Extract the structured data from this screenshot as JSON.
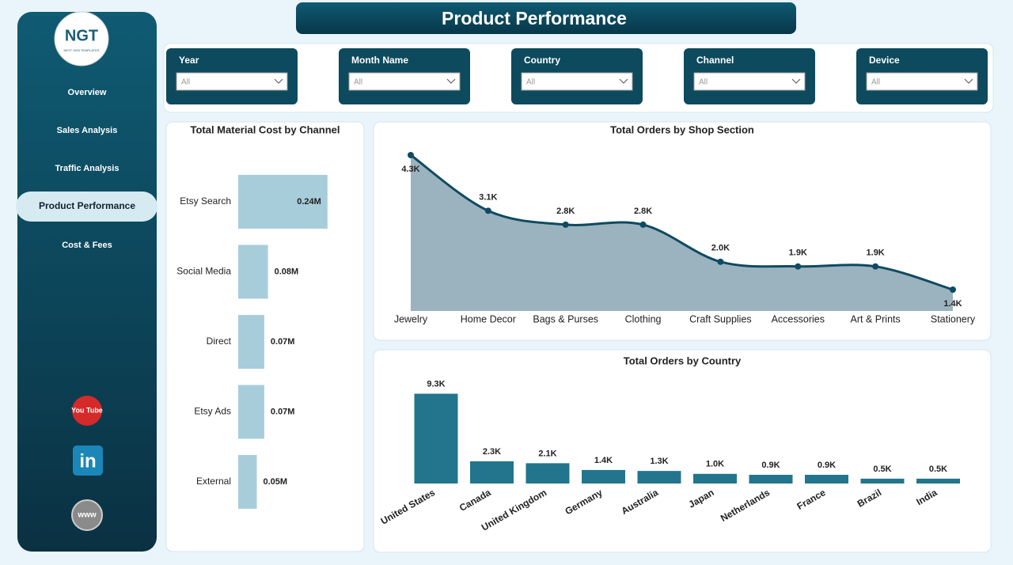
{
  "header": {
    "title": "Product Performance"
  },
  "logo": {
    "text": "NGT",
    "subtext": "NEXT GEN TEMPLATES"
  },
  "nav": [
    "Overview",
    "Sales Analysis",
    "Traffic Analysis",
    "Product Performance",
    "Cost & Fees"
  ],
  "social": [
    "You Tube",
    "in",
    "www"
  ],
  "filters": [
    {
      "label": "Year",
      "value": "All"
    },
    {
      "label": "Month Name",
      "value": "All"
    },
    {
      "label": "Country",
      "value": "All"
    },
    {
      "label": "Channel",
      "value": "All"
    },
    {
      "label": "Device",
      "value": "All"
    }
  ],
  "chart_data": [
    {
      "type": "hbar",
      "title": "Total Material Cost by Channel",
      "categories": [
        "Etsy Search",
        "Social Media",
        "Direct",
        "Etsy Ads",
        "External"
      ],
      "values": [
        0.24,
        0.08,
        0.07,
        0.07,
        0.05
      ],
      "value_labels": [
        "0.24M",
        "0.08M",
        "0.07M",
        "0.07M",
        "0.05M"
      ],
      "color": "#a7cddb"
    },
    {
      "type": "area",
      "title": "Total Orders by Shop Section",
      "categories": [
        "Jewelry",
        "Home Decor",
        "Bags & Purses",
        "Clothing",
        "Craft Supplies",
        "Accessories",
        "Art & Prints",
        "Stationery"
      ],
      "values": [
        4.3,
        3.1,
        2.8,
        2.8,
        2.0,
        1.9,
        1.9,
        1.4
      ],
      "value_labels": [
        "4.3K",
        "3.1K",
        "2.8K",
        "2.8K",
        "2.0K",
        "1.9K",
        "1.9K",
        "1.4K"
      ],
      "color": "#0f4a62"
    },
    {
      "type": "bar",
      "title": "Total Orders by Country",
      "categories": [
        "United States",
        "Canada",
        "United Kingdom",
        "Germany",
        "Australia",
        "Japan",
        "Netherlands",
        "France",
        "Brazil",
        "India"
      ],
      "values": [
        9.3,
        2.3,
        2.1,
        1.4,
        1.3,
        1.0,
        0.9,
        0.9,
        0.5,
        0.5
      ],
      "value_labels": [
        "9.3K",
        "2.3K",
        "2.1K",
        "1.4K",
        "1.3K",
        "1.0K",
        "0.9K",
        "0.9K",
        "0.5K",
        "0.5K"
      ],
      "color": "#23758d"
    }
  ]
}
